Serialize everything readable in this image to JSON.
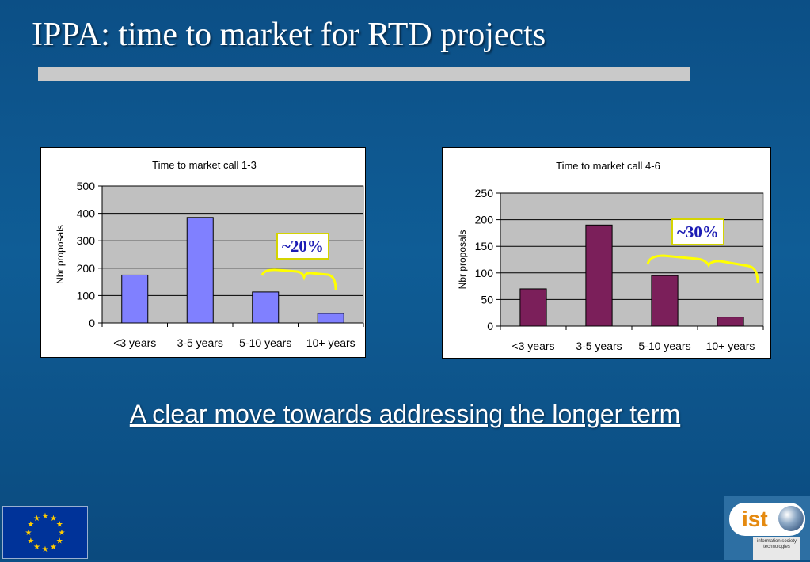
{
  "slide": {
    "title": "IPPA: time to market for RTD projects",
    "subtitle": "A clear move towards addressing the longer term"
  },
  "chart_data": [
    {
      "type": "bar",
      "title": "Time to market call 1-3",
      "ylabel": "Nbr proposals",
      "xlabel": "",
      "categories": [
        "<3 years",
        "3-5 years",
        "5-10 years",
        "10+ years"
      ],
      "values": [
        175,
        385,
        113,
        35
      ],
      "ylim": [
        0,
        500
      ],
      "yticks": [
        0,
        100,
        200,
        300,
        400,
        500
      ],
      "grid": true,
      "bar_color": "#8080ff",
      "annotation": "~20%"
    },
    {
      "type": "bar",
      "title": "Time to market call 4-6",
      "ylabel": "Nbr proposals",
      "xlabel": "",
      "categories": [
        "<3 years",
        "3-5 years",
        "5-10 years",
        "10+ years"
      ],
      "values": [
        70,
        190,
        95,
        17
      ],
      "ylim": [
        0,
        250
      ],
      "yticks": [
        0,
        50,
        100,
        150,
        200,
        250
      ],
      "grid": true,
      "bar_color": "#7b1f5a",
      "annotation": "~30%"
    }
  ],
  "logos": {
    "eu_flag_icon": "eu-flag-icon",
    "ist_text": "ist",
    "ist_subtext": "information society technologies"
  },
  "colors": {
    "background": "#0f5d96",
    "plot_area": "#c0c0c0",
    "brace": "#ffff00",
    "callout_text": "#1c1cb4"
  }
}
